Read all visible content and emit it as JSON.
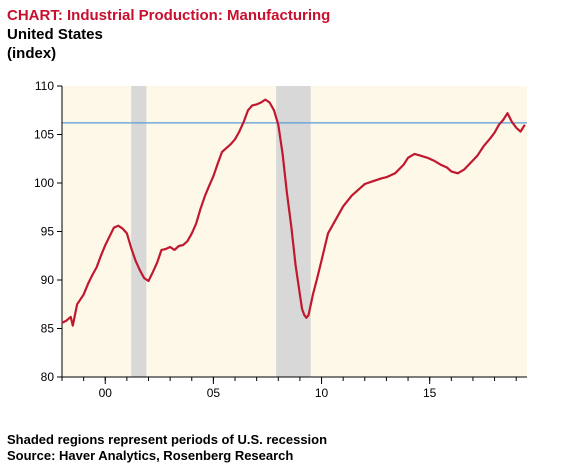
{
  "header": {
    "title": "CHART: Industrial Production: Manufacturing",
    "subtitle": "United States",
    "units": "(index)"
  },
  "footer": {
    "note": "Shaded regions represent periods of U.S. recession",
    "source": "Source: Haver Analytics, Rosenberg Research"
  },
  "chart_data": {
    "type": "line",
    "title": "CHART: Industrial Production: Manufacturing",
    "subtitle": "United States",
    "ylabel": "(index)",
    "xlim": [
      1998.0,
      2019.5
    ],
    "ylim": [
      80,
      110
    ],
    "y_ticks": [
      80,
      85,
      90,
      95,
      100,
      105,
      110
    ],
    "x_ticks": [
      {
        "value": 2000,
        "label": "00"
      },
      {
        "value": 2005,
        "label": "05"
      },
      {
        "value": 2010,
        "label": "10"
      },
      {
        "value": 2015,
        "label": "15"
      }
    ],
    "recessions": [
      [
        2001.2,
        2001.9
      ],
      [
        2007.9,
        2009.5
      ]
    ],
    "reference_line": {
      "y": 106.2,
      "color": "#5b9bd5"
    },
    "colors": {
      "series": "#c0182e",
      "background": "#fdf8e8",
      "recession": "#d8d8d8"
    },
    "grid": false,
    "series": [
      {
        "x": [
          1998.0,
          1998.2,
          1998.4,
          1998.5,
          1998.7,
          1999.0,
          1999.2,
          1999.4,
          1999.6,
          1999.8,
          2000.0,
          2000.2,
          2000.4,
          2000.6,
          2000.8,
          2001.0,
          2001.2,
          2001.4,
          2001.6,
          2001.8,
          2002.0,
          2002.2,
          2002.4,
          2002.6,
          2002.8,
          2003.0,
          2003.2,
          2003.4,
          2003.6,
          2003.8,
          2004.0,
          2004.2,
          2004.4,
          2004.6,
          2004.8,
          2005.0,
          2005.2,
          2005.4,
          2005.6,
          2005.8,
          2006.0,
          2006.2,
          2006.4,
          2006.6,
          2006.8,
          2007.0,
          2007.2,
          2007.4,
          2007.6,
          2007.8,
          2008.0,
          2008.2,
          2008.4,
          2008.6,
          2008.8,
          2009.0,
          2009.1,
          2009.2,
          2009.3,
          2009.4,
          2009.6,
          2009.8,
          2010.0,
          2010.3,
          2010.6,
          2011.0,
          2011.4,
          2011.8,
          2012.0,
          2012.4,
          2012.8,
          2013.0,
          2013.4,
          2013.8,
          2014.0,
          2014.3,
          2014.6,
          2014.9,
          2015.2,
          2015.5,
          2015.8,
          2016.0,
          2016.3,
          2016.6,
          2016.9,
          2017.2,
          2017.5,
          2017.8,
          2018.0,
          2018.2,
          2018.4,
          2018.6,
          2018.8,
          2019.0,
          2019.2,
          2019.4
        ],
        "values": [
          85.6,
          85.8,
          86.2,
          85.3,
          87.5,
          88.5,
          89.6,
          90.5,
          91.3,
          92.5,
          93.6,
          94.5,
          95.4,
          95.6,
          95.3,
          94.8,
          93.3,
          92.0,
          91.0,
          90.2,
          89.9,
          90.8,
          91.8,
          93.1,
          93.2,
          93.4,
          93.1,
          93.5,
          93.6,
          94.0,
          94.8,
          95.8,
          97.3,
          98.6,
          99.7,
          100.7,
          102.0,
          103.2,
          103.6,
          104.0,
          104.5,
          105.3,
          106.3,
          107.5,
          108.0,
          108.1,
          108.3,
          108.6,
          108.3,
          107.5,
          106.0,
          103.0,
          99.0,
          95.5,
          91.5,
          88.5,
          87.0,
          86.4,
          86.1,
          86.4,
          88.5,
          90.2,
          92.0,
          94.8,
          96.0,
          97.6,
          98.7,
          99.5,
          99.9,
          100.2,
          100.5,
          100.6,
          101.0,
          101.9,
          102.6,
          103.0,
          102.8,
          102.6,
          102.3,
          101.9,
          101.6,
          101.2,
          101.0,
          101.4,
          102.1,
          102.8,
          103.8,
          104.6,
          105.2,
          106.0,
          106.5,
          107.2,
          106.3,
          105.7,
          105.3,
          106.0
        ]
      }
    ]
  }
}
